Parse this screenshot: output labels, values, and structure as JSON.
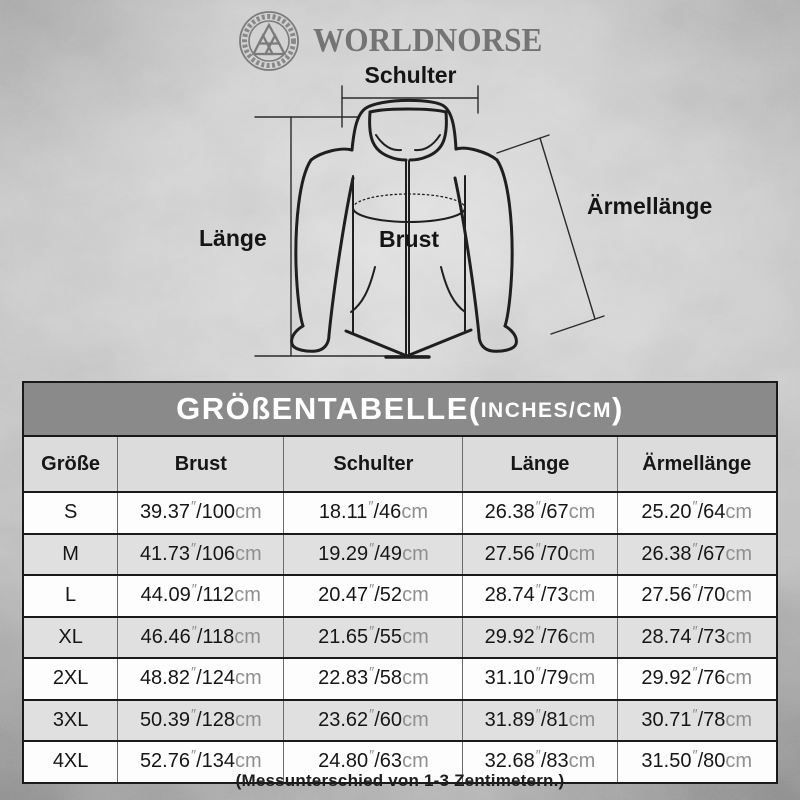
{
  "brand": {
    "name": "WORLDNORSE",
    "logo": "valknut-emblem"
  },
  "diagram": {
    "labels": {
      "schulter": "Schulter",
      "laenge": "Länge",
      "brust": "Brust",
      "aermellaenge": "Ärmellänge"
    }
  },
  "table": {
    "title_main": "GRÖßENTABELLE(",
    "title_units": "INCHES/CM",
    "title_close": ")",
    "columns": [
      "Größe",
      "Brust",
      "Schulter",
      "Länge",
      "Ärmellänge"
    ],
    "unit": {
      "inch_mark": "″",
      "separator": "/",
      "cm_suffix": "cm"
    },
    "rows": [
      {
        "size": "S",
        "cells": [
          {
            "in": "39.37",
            "cm": "100"
          },
          {
            "in": "18.11",
            "cm": "46"
          },
          {
            "in": "26.38",
            "cm": "67"
          },
          {
            "in": "25.20",
            "cm": "64"
          }
        ]
      },
      {
        "size": "M",
        "cells": [
          {
            "in": "41.73",
            "cm": "106"
          },
          {
            "in": "19.29",
            "cm": "49"
          },
          {
            "in": "27.56",
            "cm": "70"
          },
          {
            "in": "26.38",
            "cm": "67"
          }
        ]
      },
      {
        "size": "L",
        "cells": [
          {
            "in": "44.09",
            "cm": "112"
          },
          {
            "in": "20.47",
            "cm": "52"
          },
          {
            "in": "28.74",
            "cm": "73"
          },
          {
            "in": "27.56",
            "cm": "70"
          }
        ]
      },
      {
        "size": "XL",
        "cells": [
          {
            "in": "46.46",
            "cm": "118"
          },
          {
            "in": "21.65",
            "cm": "55"
          },
          {
            "in": "29.92",
            "cm": "76"
          },
          {
            "in": "28.74",
            "cm": "73"
          }
        ]
      },
      {
        "size": "2XL",
        "cells": [
          {
            "in": "48.82",
            "cm": "124"
          },
          {
            "in": "22.83",
            "cm": "58"
          },
          {
            "in": "31.10",
            "cm": "79"
          },
          {
            "in": "29.92",
            "cm": "76"
          }
        ]
      },
      {
        "size": "3XL",
        "cells": [
          {
            "in": "50.39",
            "cm": "128"
          },
          {
            "in": "23.62",
            "cm": "60"
          },
          {
            "in": "31.89",
            "cm": "81"
          },
          {
            "in": "30.71",
            "cm": "78"
          }
        ]
      },
      {
        "size": "4XL",
        "cells": [
          {
            "in": "52.76",
            "cm": "134"
          },
          {
            "in": "24.80",
            "cm": "63"
          },
          {
            "in": "32.68",
            "cm": "83"
          },
          {
            "in": "31.50",
            "cm": "80"
          }
        ]
      }
    ]
  },
  "footer": {
    "note": "(Messunterschied von 1-3 Zentimetern.)"
  },
  "colors": {
    "titlebar": "#8a8a8a",
    "headbg": "#dcdcdc",
    "rowbg": "#fdfdfd",
    "rowalt": "#e0e0e0",
    "ink": "#161616",
    "unitgray": "#8f8f8f",
    "art": "#1f1f1f",
    "brandgray": "#747474",
    "border": "#1a1a1a"
  }
}
